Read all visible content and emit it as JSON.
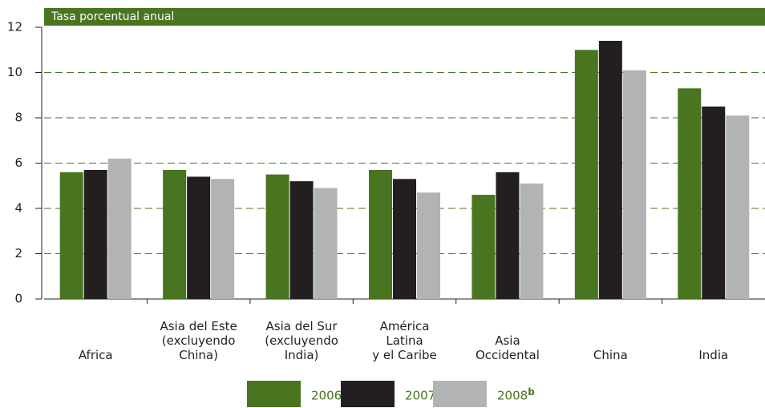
{
  "chart_data": {
    "type": "bar",
    "title": "Tasa porcentual anual",
    "categories": [
      "Africa",
      "Asia del Este\n(excluyendo\nChina)",
      "Asia del Sur\n(excluyendo\nIndia)",
      "América\nLatina\ny el Caribe",
      "Asia\nOccidental",
      "China",
      "India"
    ],
    "series": [
      {
        "name": "2006",
        "color": "#4a7520",
        "values": [
          5.6,
          5.7,
          5.5,
          5.7,
          4.6,
          11.0,
          9.3
        ]
      },
      {
        "name": "2007",
        "footnote": "a",
        "color": "#231f20",
        "values": [
          5.7,
          5.4,
          5.2,
          5.3,
          5.6,
          11.4,
          8.5
        ]
      },
      {
        "name": "2008",
        "footnote": "b",
        "color": "#b1b3b4",
        "values": [
          6.2,
          5.3,
          4.9,
          4.7,
          5.1,
          10.1,
          8.1
        ]
      }
    ],
    "ylim": [
      0,
      12
    ],
    "yticks": [
      0,
      2,
      4,
      6,
      8,
      10,
      12
    ],
    "grid": true
  }
}
